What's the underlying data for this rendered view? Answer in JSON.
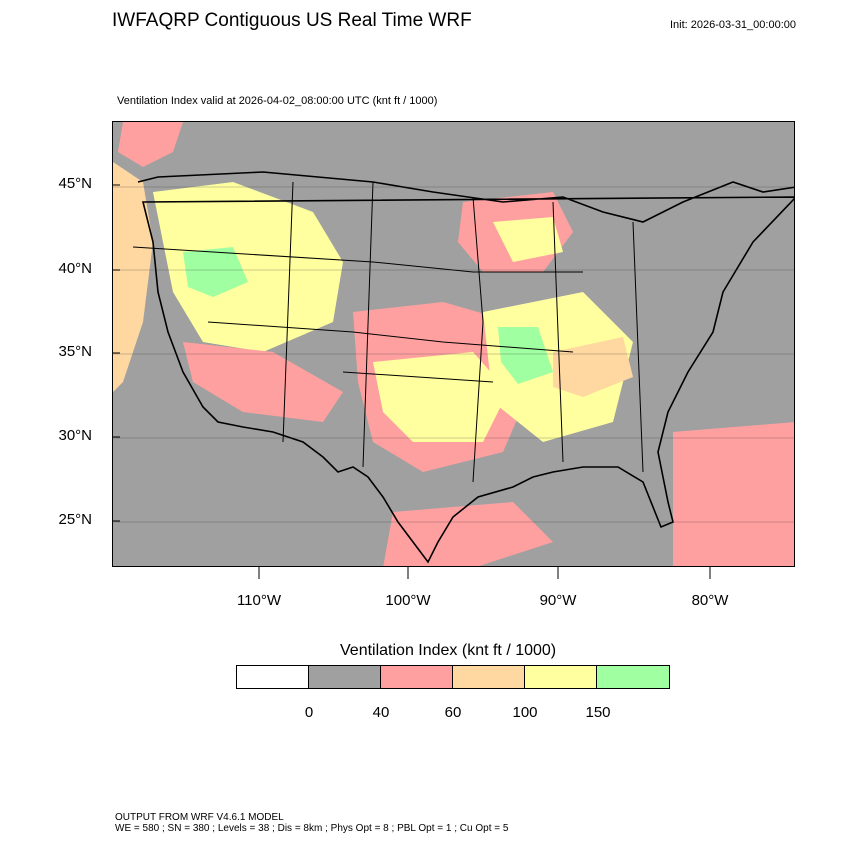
{
  "header": {
    "title": "IWFAQRP Contiguous US Real Time WRF",
    "init": "Init: 2026-03-31_00:00:00",
    "valid": "Ventilation Index valid at 2026-04-02_08:00:00 UTC   (knt ft / 1000)"
  },
  "map": {
    "lat_labels": [
      "45°N",
      "40°N",
      "35°N",
      "30°N",
      "25°N"
    ],
    "lon_labels": [
      "110°W",
      "100°W",
      "90°W",
      "80°W"
    ],
    "colors": {
      "ocean_background": "#a0a0a0",
      "cat_0_40": "#a0a0a0",
      "cat_40_60": "#ffa0a0",
      "cat_60_100": "#ffd7a0",
      "cat_100_150": "#ffff9f",
      "cat_150_plus": "#a0ffa0",
      "boundary": "#000000"
    }
  },
  "colorbar": {
    "title": "Ventilation Index  (knt ft / 1000)",
    "colors": [
      "#ffffff",
      "#a0a0a0",
      "#ffa0a0",
      "#ffd7a0",
      "#ffff9f",
      "#a0ffa0"
    ],
    "labels": [
      "0",
      "40",
      "60",
      "100",
      "150"
    ]
  },
  "footer": {
    "line1": "OUTPUT FROM WRF V4.6.1 MODEL",
    "line2": "WE = 580 ; SN = 380 ; Levels = 38 ; Dis = 8km ; Phys Opt = 8 ; PBL Opt = 1 ; Cu Opt = 5"
  }
}
